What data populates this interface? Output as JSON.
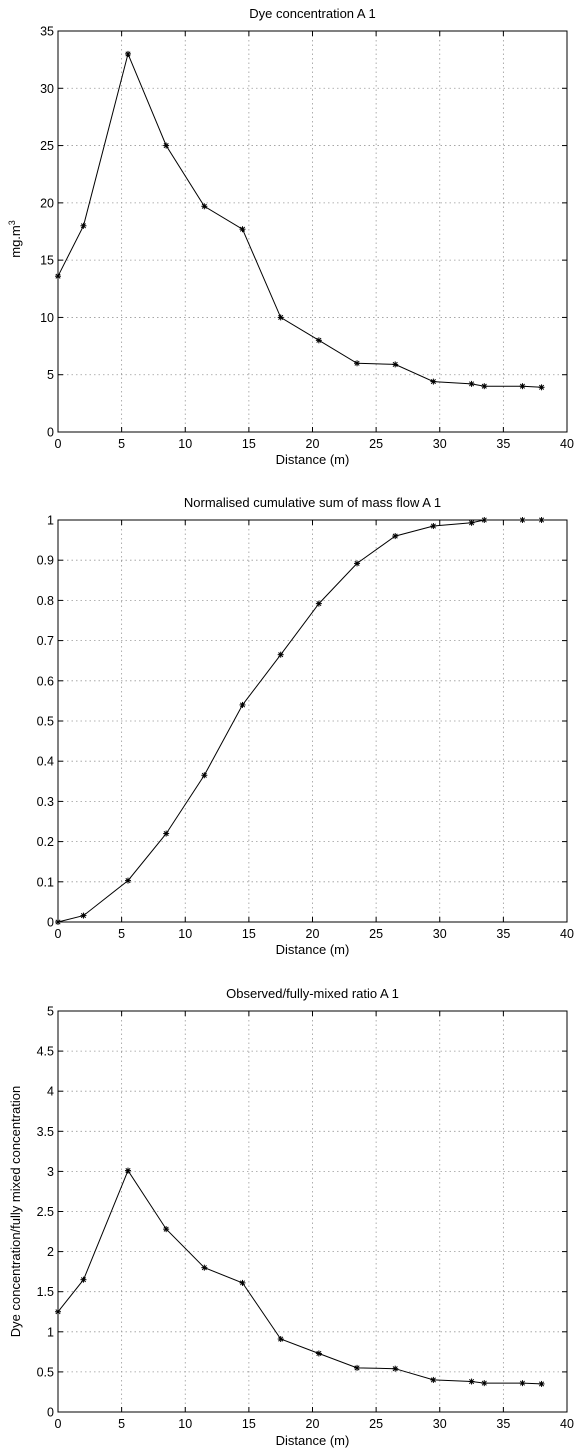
{
  "chart_data": [
    {
      "type": "line",
      "title": "Dye concentration A 1",
      "xlabel": "Distance (m)",
      "ylabel": "mg.m",
      "ylabel_superscript": "3",
      "xlim": [
        0,
        40
      ],
      "ylim": [
        0,
        35
      ],
      "xticks": [
        0,
        5,
        10,
        15,
        20,
        25,
        30,
        35,
        40
      ],
      "yticks": [
        0,
        5,
        10,
        15,
        20,
        25,
        30,
        35
      ],
      "grid": true,
      "marker": "star",
      "series": [
        {
          "x": [
            0,
            2,
            5.5,
            8.5,
            11.5,
            14.5,
            17.5,
            20.5,
            23.5,
            26.5,
            29.5,
            32.5,
            33.5,
            36.5,
            38
          ],
          "y": [
            13.6,
            18,
            33,
            25,
            19.7,
            17.7,
            10,
            8,
            6,
            5.9,
            4.4,
            4.2,
            4,
            4,
            3.9
          ]
        }
      ]
    },
    {
      "type": "line",
      "title": "Normalised cumulative sum of mass flow A 1",
      "xlabel": "Distance (m)",
      "ylabel": "",
      "xlim": [
        0,
        40
      ],
      "ylim": [
        0,
        1
      ],
      "xticks": [
        0,
        5,
        10,
        15,
        20,
        25,
        30,
        35,
        40
      ],
      "yticks": [
        0,
        0.1,
        0.2,
        0.3,
        0.4,
        0.5,
        0.6,
        0.7,
        0.8,
        0.9,
        1
      ],
      "grid": true,
      "marker": "star",
      "series": [
        {
          "x": [
            0,
            2,
            5.5,
            8.5,
            11.5,
            14.5,
            17.5,
            20.5,
            23.5,
            26.5,
            29.5,
            32.5,
            33.5,
            36.5,
            38
          ],
          "y": [
            0,
            0.016,
            0.103,
            0.22,
            0.365,
            0.54,
            0.665,
            0.792,
            0.892,
            0.96,
            0.985,
            0.993,
            1.0,
            1.0,
            1.0
          ]
        }
      ]
    },
    {
      "type": "line",
      "title": "Observed/fully-mixed ratio A 1",
      "xlabel": "Distance (m)",
      "ylabel": "Dye concentration/fully mixed concentration",
      "xlim": [
        0,
        40
      ],
      "ylim": [
        0,
        5
      ],
      "xticks": [
        0,
        5,
        10,
        15,
        20,
        25,
        30,
        35,
        40
      ],
      "yticks": [
        0,
        0.5,
        1,
        1.5,
        2,
        2.5,
        3,
        3.5,
        4,
        4.5,
        5
      ],
      "grid": true,
      "marker": "star",
      "series": [
        {
          "x": [
            0,
            2,
            5.5,
            8.5,
            11.5,
            14.5,
            17.5,
            20.5,
            23.5,
            26.5,
            29.5,
            32.5,
            33.5,
            36.5,
            38
          ],
          "y": [
            1.25,
            1.65,
            3.01,
            2.28,
            1.8,
            1.61,
            0.91,
            0.73,
            0.55,
            0.54,
            0.4,
            0.38,
            0.36,
            0.36,
            0.35
          ]
        }
      ]
    }
  ]
}
